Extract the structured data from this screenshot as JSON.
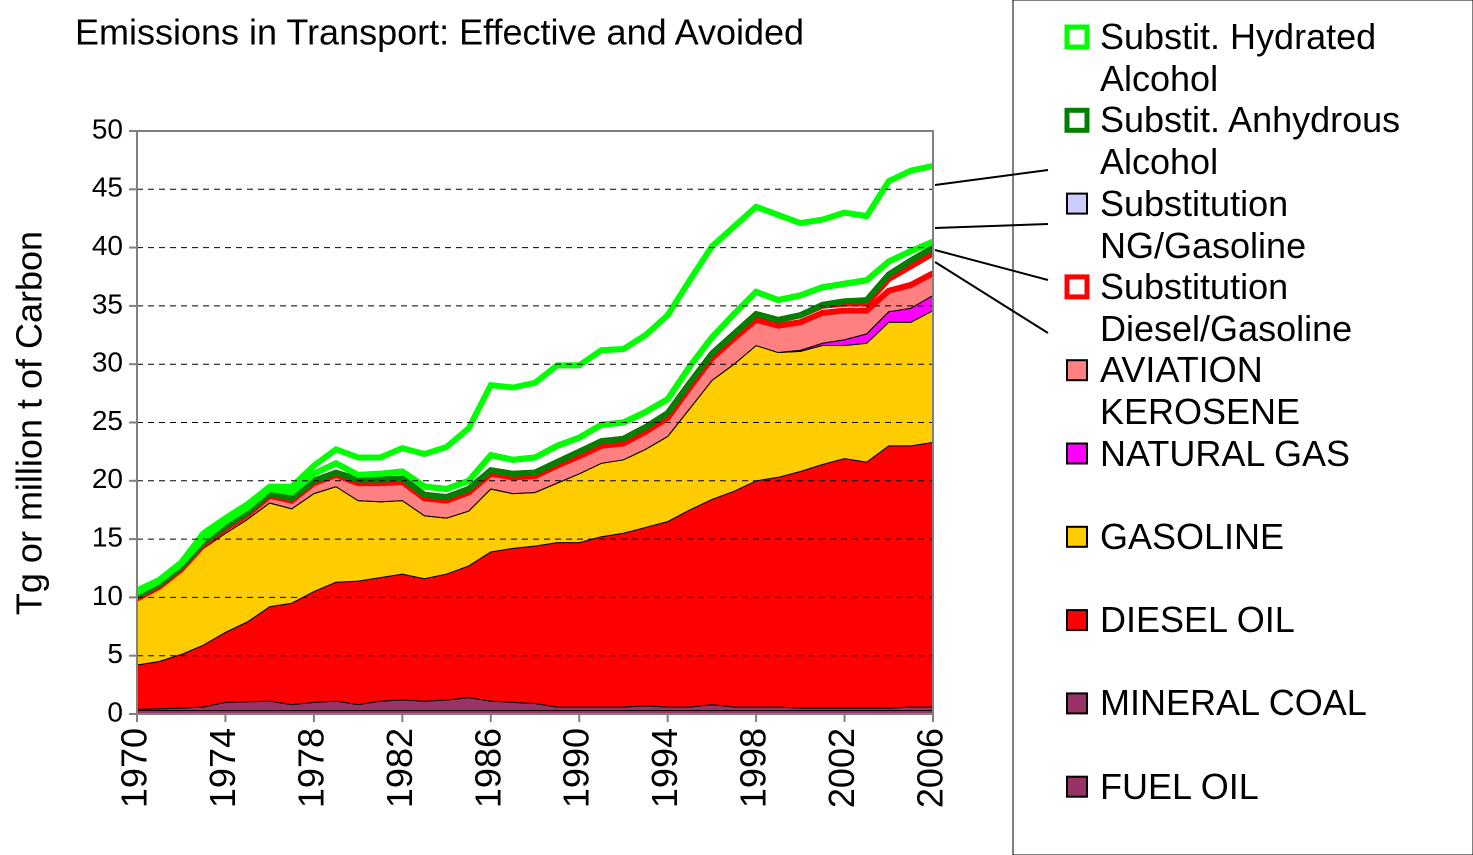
{
  "chart_data": {
    "type": "stacked-area",
    "title": "Emissions in Transport: Effective and Avoided",
    "y_label": "Tg or million t of Carbon",
    "x": [
      1970,
      1971,
      1972,
      1973,
      1974,
      1975,
      1976,
      1977,
      1978,
      1979,
      1980,
      1981,
      1982,
      1983,
      1984,
      1985,
      1986,
      1987,
      1988,
      1989,
      1990,
      1991,
      1992,
      1993,
      1994,
      1995,
      1996,
      1997,
      1998,
      1999,
      2000,
      2001,
      2002,
      2003,
      2004,
      2005,
      2006
    ],
    "xlim": [
      1970,
      2006
    ],
    "xticks": [
      1970,
      1974,
      1978,
      1982,
      1986,
      1990,
      1994,
      1998,
      2002,
      2006
    ],
    "ylim": [
      0,
      50
    ],
    "yticks": [
      0,
      5,
      10,
      15,
      20,
      25,
      30,
      35,
      40,
      45,
      50
    ],
    "grid": true,
    "series": [
      {
        "name": "FUEL OIL",
        "color": "#993366",
        "values": [
          0.3,
          0.3,
          0.3,
          0.3,
          0.3,
          0.3,
          0.3,
          0.3,
          0.3,
          0.3,
          0.3,
          0.3,
          0.3,
          0.3,
          0.3,
          0.3,
          0.3,
          0.3,
          0.3,
          0.3,
          0.3,
          0.3,
          0.3,
          0.3,
          0.3,
          0.3,
          0.3,
          0.3,
          0.3,
          0.3,
          0.3,
          0.3,
          0.3,
          0.3,
          0.3,
          0.3,
          0.3
        ]
      },
      {
        "name": "MINERAL COAL",
        "color": "#993366",
        "values": [
          0.1,
          0.15,
          0.2,
          0.3,
          0.7,
          0.75,
          0.8,
          0.5,
          0.7,
          0.8,
          0.5,
          0.8,
          0.9,
          0.8,
          0.9,
          1.1,
          0.8,
          0.7,
          0.6,
          0.3,
          0.3,
          0.3,
          0.3,
          0.4,
          0.3,
          0.3,
          0.5,
          0.3,
          0.3,
          0.3,
          0.2,
          0.2,
          0.2,
          0.2,
          0.2,
          0.3,
          0.3
        ]
      },
      {
        "name": "DIESEL OIL",
        "color": "#ff0000",
        "values": [
          3.8,
          4.05,
          4.6,
          5.3,
          6.0,
          6.85,
          8.1,
          8.7,
          9.5,
          10.2,
          10.6,
          10.6,
          10.8,
          10.5,
          10.8,
          11.3,
          12.8,
          13.2,
          13.5,
          14.1,
          14.1,
          14.6,
          14.9,
          15.3,
          15.9,
          16.9,
          17.6,
          18.5,
          19.4,
          19.7,
          20.3,
          20.9,
          21.4,
          21.1,
          22.5,
          22.4,
          22.7
        ]
      },
      {
        "name": "GASOLINE",
        "color": "#ffcc00",
        "values": [
          5.6,
          6.3,
          7.1,
          8.3,
          8.5,
          8.8,
          8.9,
          8.1,
          8.4,
          8.2,
          6.9,
          6.5,
          6.3,
          5.4,
          4.8,
          4.7,
          5.4,
          4.7,
          4.6,
          5.1,
          5.9,
          6.3,
          6.3,
          6.7,
          7.3,
          8.7,
          10.2,
          10.9,
          11.6,
          10.7,
          10.3,
          10.2,
          9.7,
          10.2,
          10.6,
          10.6,
          11.3
        ]
      },
      {
        "name": "NATURAL GAS",
        "color": "#ff00ff",
        "values": [
          0,
          0,
          0,
          0,
          0,
          0,
          0,
          0,
          0,
          0,
          0,
          0,
          0,
          0,
          0,
          0,
          0,
          0,
          0,
          0,
          0,
          0,
          0,
          0,
          0,
          0,
          0,
          0,
          0,
          0,
          0.1,
          0.2,
          0.5,
          0.8,
          0.9,
          1.2,
          1.3
        ]
      },
      {
        "name": "AVIATION KEROSENE",
        "color": "#ff8080",
        "values": [
          0.1,
          0.1,
          0.2,
          0.3,
          0.4,
          0.4,
          0.6,
          0.7,
          0.9,
          1.0,
          1.5,
          1.6,
          1.6,
          1.5,
          1.5,
          1.6,
          1.3,
          1.4,
          1.4,
          1.5,
          1.5,
          1.5,
          1.4,
          1.5,
          1.6,
          1.8,
          1.9,
          2.2,
          2.2,
          2.3,
          2.4,
          2.6,
          2.5,
          2.0,
          1.8,
          2.0,
          1.9
        ]
      },
      {
        "name": "Substitution Diesel/Gasoline",
        "color": "#ff0000",
        "fill": "#ffffff",
        "values": [
          0.2,
          0.2,
          0.2,
          0.2,
          0.2,
          0.2,
          0.2,
          0.2,
          0.2,
          0.2,
          0.3,
          0.3,
          0.3,
          0.3,
          0.3,
          0.3,
          0.3,
          0.3,
          0.3,
          0.3,
          0.4,
          0.4,
          0.4,
          0.4,
          0.4,
          0.4,
          0.4,
          0.4,
          0.5,
          0.5,
          0.6,
          0.6,
          0.6,
          0.6,
          1.0,
          1.6,
          1.7
        ]
      },
      {
        "name": "Substitution NG/Gasoline",
        "color": "#ccccff",
        "values": [
          0,
          0,
          0,
          0,
          0,
          0,
          0,
          0,
          0,
          0,
          0,
          0,
          0,
          0,
          0,
          0,
          0,
          0,
          0,
          0,
          0,
          0,
          0,
          0,
          0,
          0,
          0,
          0,
          0,
          0,
          0,
          0.1,
          0.2,
          0.3,
          0.4,
          0.5,
          0.5
        ]
      },
      {
        "name": "Substit. Anhydrous Alcohol",
        "color": "#008000",
        "fill": "#ffffff",
        "values": [
          0.3,
          0.3,
          0.3,
          0.3,
          0.4,
          0.4,
          0.4,
          0.5,
          0.6,
          0.8,
          0.4,
          0.5,
          0.6,
          0.7,
          0.7,
          0.7,
          1.3,
          1.2,
          1.3,
          1.4,
          1.2,
          1.4,
          1.4,
          1.3,
          1.2,
          1.4,
          1.4,
          1.7,
          1.9,
          1.7,
          1.7,
          1.5,
          1.5,
          1.7,
          1.1,
          0.8,
          0.5
        ]
      },
      {
        "name": "Substit. Hydrated Alcohol",
        "color": "#00ff00",
        "fill": "#ffffff",
        "values": [
          0.2,
          0.1,
          0.1,
          0.5,
          0.3,
          0.3,
          0.2,
          0.5,
          0.7,
          1.2,
          1.5,
          1.4,
          2.0,
          2.8,
          3.6,
          4.5,
          6.0,
          6.2,
          6.4,
          6.9,
          6.2,
          6.4,
          6.3,
          6.6,
          7.2,
          7.4,
          7.8,
          7.5,
          7.3,
          7.3,
          6.2,
          5.8,
          6.1,
          5.5,
          6.9,
          6.9,
          6.5
        ]
      }
    ]
  }
}
